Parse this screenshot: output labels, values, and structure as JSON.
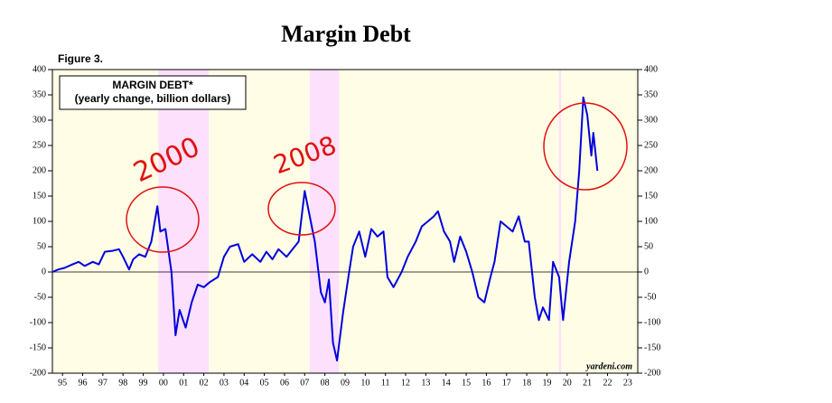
{
  "chart_data": {
    "type": "line",
    "title": "Margin Debt",
    "figure_label": "Figure 3.",
    "legend_title": "MARGIN DEBT*",
    "legend_subtitle": "(yearly change, billion dollars)",
    "source": "yardeni.com",
    "annotations": [
      "2000",
      "2008"
    ],
    "bands": [
      [
        2000.25,
        2002.75
      ],
      [
        2007.75,
        2009.2
      ],
      [
        2020.1,
        2020.2
      ]
    ],
    "xlim": [
      1995,
      2024
    ],
    "xticks": [
      {
        "value": 1995.5,
        "label": "95"
      },
      {
        "value": 1996.5,
        "label": "96"
      },
      {
        "value": 1997.5,
        "label": "97"
      },
      {
        "value": 1998.5,
        "label": "98"
      },
      {
        "value": 1999.5,
        "label": "99"
      },
      {
        "value": 2000.5,
        "label": "00"
      },
      {
        "value": 2001.5,
        "label": "01"
      },
      {
        "value": 2002.5,
        "label": "02"
      },
      {
        "value": 2003.5,
        "label": "03"
      },
      {
        "value": 2004.5,
        "label": "04"
      },
      {
        "value": 2005.5,
        "label": "05"
      },
      {
        "value": 2006.5,
        "label": "06"
      },
      {
        "value": 2007.5,
        "label": "07"
      },
      {
        "value": 2008.5,
        "label": "08"
      },
      {
        "value": 2009.5,
        "label": "09"
      },
      {
        "value": 2010.5,
        "label": "10"
      },
      {
        "value": 2011.5,
        "label": "11"
      },
      {
        "value": 2012.5,
        "label": "12"
      },
      {
        "value": 2013.5,
        "label": "13"
      },
      {
        "value": 2014.5,
        "label": "14"
      },
      {
        "value": 2015.5,
        "label": "15"
      },
      {
        "value": 2016.5,
        "label": "16"
      },
      {
        "value": 2017.5,
        "label": "17"
      },
      {
        "value": 2018.5,
        "label": "18"
      },
      {
        "value": 2019.5,
        "label": "19"
      },
      {
        "value": 2020.5,
        "label": "20"
      },
      {
        "value": 2021.5,
        "label": "21"
      },
      {
        "value": 2022.5,
        "label": "22"
      },
      {
        "value": 2023.5,
        "label": "23"
      }
    ],
    "ylim": [
      -200,
      400
    ],
    "yticks": [
      -200,
      -150,
      -100,
      -50,
      0,
      50,
      100,
      150,
      200,
      250,
      300,
      350,
      400
    ],
    "y2lim": [
      -200,
      400
    ],
    "y2ticks": [
      -200,
      -150,
      -100,
      -50,
      0,
      50,
      100,
      150,
      200,
      250,
      300,
      350,
      400
    ],
    "series": [
      {
        "name": "MARGIN DEBT*",
        "color": "#0000dd",
        "x": [
          1995.0,
          1995.3,
          1995.6,
          1996.0,
          1996.3,
          1996.6,
          1997.0,
          1997.3,
          1997.6,
          1998.0,
          1998.3,
          1998.5,
          1998.8,
          1999.0,
          1999.3,
          1999.6,
          1999.9,
          2000.2,
          2000.35,
          2000.6,
          2000.9,
          2001.1,
          2001.3,
          2001.6,
          2001.9,
          2002.2,
          2002.5,
          2002.8,
          2003.2,
          2003.5,
          2003.8,
          2004.2,
          2004.5,
          2004.9,
          2005.3,
          2005.6,
          2005.9,
          2006.2,
          2006.6,
          2006.9,
          2007.2,
          2007.5,
          2007.8,
          2008.0,
          2008.3,
          2008.5,
          2008.7,
          2008.9,
          2009.1,
          2009.4,
          2009.7,
          2009.9,
          2010.2,
          2010.5,
          2010.8,
          2011.1,
          2011.4,
          2011.6,
          2011.9,
          2012.3,
          2012.6,
          2013.0,
          2013.3,
          2013.6,
          2013.9,
          2014.1,
          2014.4,
          2014.7,
          2014.9,
          2015.2,
          2015.5,
          2015.8,
          2016.1,
          2016.4,
          2016.7,
          2016.9,
          2017.2,
          2017.5,
          2017.8,
          2018.1,
          2018.4,
          2018.6,
          2018.9,
          2019.1,
          2019.3,
          2019.6,
          2019.8,
          2020.1,
          2020.3,
          2020.6,
          2020.9,
          2021.1,
          2021.3,
          2021.5,
          2021.7,
          2021.8,
          2022.0
        ],
        "values": [
          0,
          5,
          8,
          15,
          20,
          12,
          20,
          15,
          40,
          42,
          45,
          30,
          5,
          25,
          35,
          30,
          60,
          130,
          80,
          85,
          0,
          -125,
          -75,
          -110,
          -60,
          -25,
          -30,
          -20,
          -10,
          30,
          50,
          55,
          20,
          35,
          20,
          40,
          25,
          45,
          30,
          45,
          60,
          160,
          100,
          60,
          -40,
          -60,
          -15,
          -140,
          -175,
          -80,
          0,
          50,
          80,
          30,
          85,
          70,
          80,
          -10,
          -30,
          0,
          30,
          60,
          90,
          100,
          110,
          120,
          80,
          60,
          20,
          70,
          40,
          0,
          -50,
          -60,
          -10,
          20,
          100,
          90,
          80,
          110,
          60,
          60,
          -50,
          -95,
          -70,
          -95,
          20,
          -10,
          -95,
          20,
          100,
          200,
          345,
          310,
          230,
          275,
          200
        ]
      }
    ]
  }
}
